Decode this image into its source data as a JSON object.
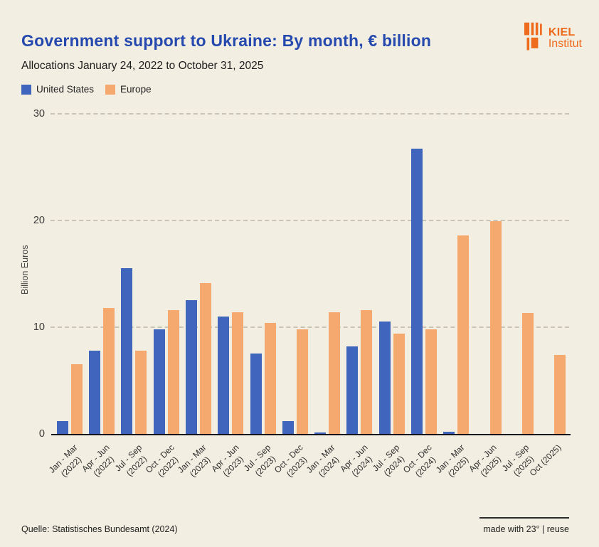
{
  "header": {
    "title": "Government support to Ukraine: By month, € billion",
    "subtitle": "Allocations January 24, 2022 to October 31, 2025"
  },
  "logo": {
    "line1": "KIEL",
    "line2": "Institut",
    "color": "#ee6a1d"
  },
  "chart_data": {
    "type": "bar",
    "title": "Government support to Ukraine: By month, € billion",
    "subtitle": "Allocations January 24, 2022 to October 31, 2025",
    "ylabel": "Billion Euros",
    "xlabel": "",
    "ylim": [
      0,
      30
    ],
    "yticks": [
      0,
      10,
      20,
      30
    ],
    "grid": "horizontal dashed",
    "legend_position": "top-left",
    "background_color": "#f2eee1",
    "categories": [
      [
        "Jan - Mar",
        "(2022)"
      ],
      [
        "Apr - Jun",
        "(2022)"
      ],
      [
        "Jul - Sep",
        "(2022)"
      ],
      [
        "Oct - Dec",
        "(2022)"
      ],
      [
        "Jan - Mar",
        "(2023)"
      ],
      [
        "Apr - Jun",
        "(2023)"
      ],
      [
        "Jul - Sep",
        "(2023)"
      ],
      [
        "Oct - Dec",
        "(2023)"
      ],
      [
        "Jan - Mar",
        "(2024)"
      ],
      [
        "Apr - Jun",
        "(2024)"
      ],
      [
        "Jul - Sep",
        "(2024)"
      ],
      [
        "Oct - Dec",
        "(2024)"
      ],
      [
        "Jan - Mar",
        "(2025)"
      ],
      [
        "Apr - Jun",
        "(2025)"
      ],
      [
        "Jul - Sep",
        "(2025)"
      ],
      [
        "Oct (2025)"
      ]
    ],
    "series": [
      {
        "name": "United States",
        "color": "#3f65bc",
        "values": [
          1.3,
          7.9,
          15.6,
          9.9,
          12.6,
          11.1,
          7.6,
          1.3,
          0.2,
          8.3,
          10.6,
          26.8,
          0.3,
          0,
          0,
          0
        ]
      },
      {
        "name": "Europe",
        "color": "#f6a96e",
        "values": [
          6.6,
          11.9,
          7.9,
          11.7,
          14.2,
          11.5,
          10.5,
          9.9,
          11.5,
          11.7,
          9.5,
          9.9,
          18.7,
          20.0,
          11.4,
          7.5
        ]
      }
    ]
  },
  "footer": {
    "source": "Quelle: Statistisches Bundesamt (2024)",
    "credit": "made with 23° | reuse"
  }
}
